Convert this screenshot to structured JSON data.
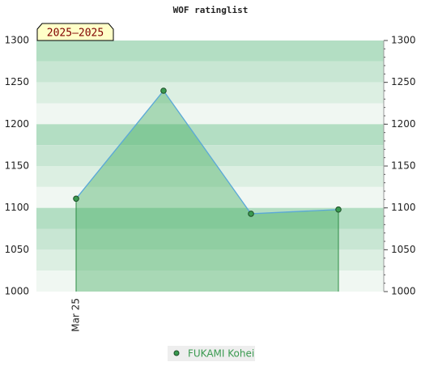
{
  "chart_data": {
    "type": "line",
    "title": "WOF ratinglist",
    "period_label": "2025–2025",
    "categories": [
      "Mar 25",
      null,
      null,
      null
    ],
    "series": [
      {
        "name": "FUKAMI Kohei",
        "color": "#3a9a50",
        "values": [
          1111,
          1240,
          1093,
          1098
        ]
      }
    ],
    "ylim": [
      1000,
      1300
    ],
    "yticks": [
      1000,
      1050,
      1100,
      1150,
      1200,
      1250,
      1300
    ]
  }
}
